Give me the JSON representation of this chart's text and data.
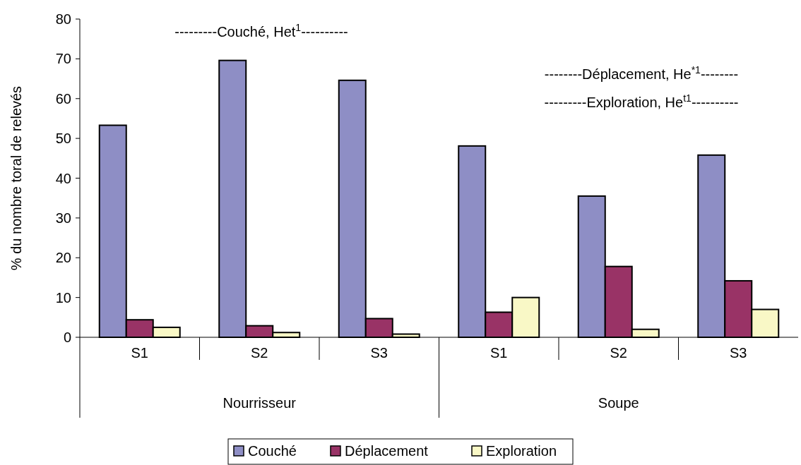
{
  "chart_data": {
    "type": "bar",
    "ylabel": "% du nombre toral de relevés",
    "categories": [
      "S1",
      "S2",
      "S3",
      "S1",
      "S2",
      "S3"
    ],
    "series": [
      {
        "name": "Couché",
        "color": "#8e8ec5",
        "values": [
          53.3,
          69.6,
          64.6,
          48.1,
          35.5,
          45.8
        ]
      },
      {
        "name": "Déplacement",
        "color": "#993366",
        "values": [
          4.4,
          2.9,
          4.7,
          6.3,
          17.8,
          14.2
        ]
      },
      {
        "name": "Exploration",
        "color": "#f9f8c6",
        "values": [
          2.5,
          1.2,
          0.8,
          10.0,
          2.0,
          7.0
        ]
      }
    ],
    "ylim": [
      0,
      80
    ],
    "yticks": [
      0,
      10,
      20,
      30,
      40,
      50,
      60,
      70,
      80
    ],
    "grid": false,
    "legend": "bottom",
    "annotations": [
      "---------Couché, Het$^{1}$----------",
      "--------Déplacement, He$^{*1}$--------",
      "---------Exploration, He$^{t1}$----------",
      "Nourrisseur",
      "Soupe"
    ]
  }
}
